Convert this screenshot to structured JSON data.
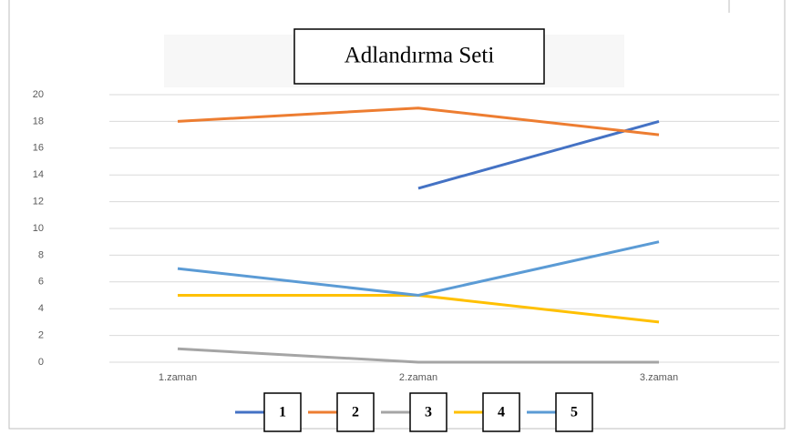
{
  "chart_data": {
    "type": "line",
    "title": "Adlandırma Seti",
    "categories": [
      "1.zaman",
      "2.zaman",
      "3.zaman"
    ],
    "series": [
      {
        "name": "1",
        "color": "#4472c4",
        "values": [
          null,
          13,
          18
        ]
      },
      {
        "name": "2",
        "color": "#ed7d31",
        "values": [
          18,
          19,
          17
        ]
      },
      {
        "name": "3",
        "color": "#a5a5a5",
        "values": [
          1,
          0,
          0
        ]
      },
      {
        "name": "4",
        "color": "#ffc000",
        "values": [
          5,
          5,
          3
        ]
      },
      {
        "name": "5",
        "color": "#5b9bd5",
        "values": [
          7,
          5,
          9
        ]
      }
    ],
    "ylim": [
      0,
      20
    ],
    "yticks": [
      0,
      2,
      4,
      6,
      8,
      10,
      12,
      14,
      16,
      18,
      20
    ],
    "grid": true,
    "legend": "bottom"
  }
}
